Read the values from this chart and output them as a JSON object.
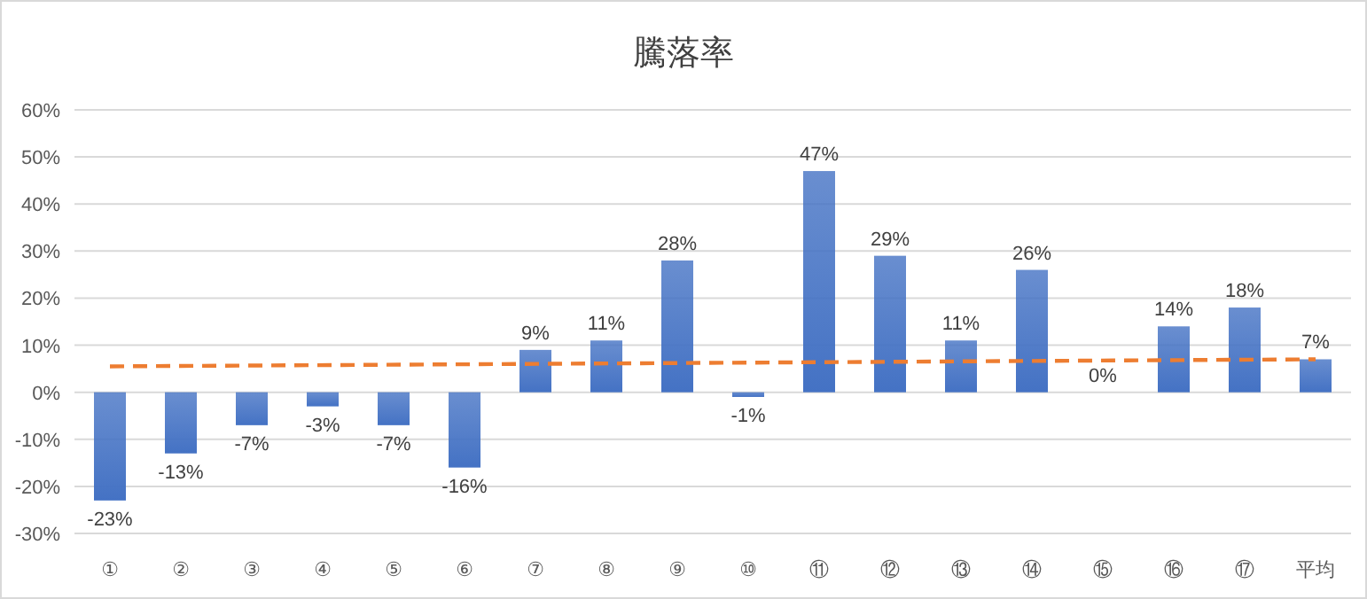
{
  "chart_data": {
    "type": "bar",
    "title": "騰落率",
    "categories": [
      "①",
      "②",
      "③",
      "④",
      "⑤",
      "⑥",
      "⑦",
      "⑧",
      "⑨",
      "⑩",
      "⑪",
      "⑫",
      "⑬",
      "⑭",
      "⑮",
      "⑯",
      "⑰",
      "平均"
    ],
    "series": [
      {
        "color": "#4472c4",
        "values": [
          -23,
          -13,
          -7,
          -3,
          -7,
          -16,
          9,
          11,
          28,
          -1,
          47,
          29,
          11,
          26,
          0,
          14,
          18,
          7
        ],
        "value_labels": [
          "-23%",
          "-13%",
          "-7%",
          "-3%",
          "-7%",
          "-16%",
          "9%",
          "11%",
          "28%",
          "-1%",
          "47%",
          "29%",
          "11%",
          "26%",
          "0%",
          "14%",
          "18%",
          "7%"
        ]
      },
      {
        "type": "line",
        "color": "#ed7d31",
        "line_style": "dashed",
        "marker": "none",
        "x": [
          "①",
          "平均"
        ],
        "values": [
          5.5,
          7
        ]
      }
    ],
    "ylim": [
      -30,
      60
    ],
    "yticks": [
      {
        "value": -30,
        "label": "-30%"
      },
      {
        "value": -20,
        "label": "-20%"
      },
      {
        "value": -10,
        "label": "-10%"
      },
      {
        "value": 0,
        "label": "0%"
      },
      {
        "value": 10,
        "label": "10%"
      },
      {
        "value": 20,
        "label": "20%"
      },
      {
        "value": 30,
        "label": "30%"
      },
      {
        "value": 40,
        "label": "40%"
      },
      {
        "value": 50,
        "label": "50%"
      },
      {
        "value": 60,
        "label": "60%"
      }
    ],
    "grid": "y"
  }
}
